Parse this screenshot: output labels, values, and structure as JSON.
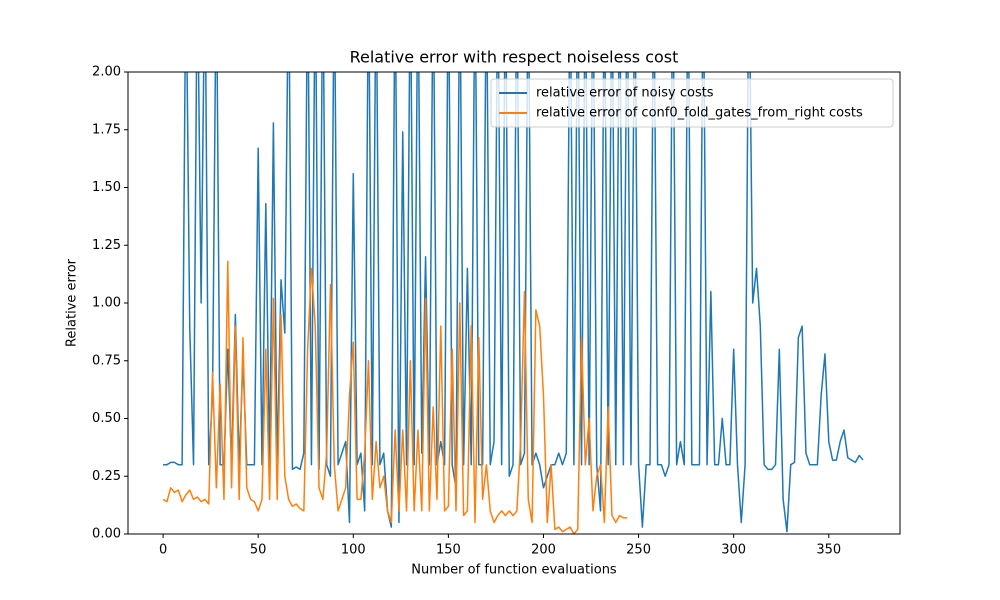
{
  "chart_data": {
    "type": "line",
    "title": "Relative error with respect noiseless cost",
    "x_label": "Number of function evaluations",
    "y_label": "Relative error",
    "xlim": [
      -18.45,
      387.45
    ],
    "ylim": [
      0,
      2
    ],
    "xticks": [
      0,
      50,
      100,
      150,
      200,
      250,
      300,
      350
    ],
    "yticks": [
      {
        "value": 0,
        "label": "0.00"
      },
      {
        "value": 0.25,
        "label": "0.25"
      },
      {
        "value": 0.5,
        "label": "0.50"
      },
      {
        "value": 0.75,
        "label": "0.75"
      },
      {
        "value": 1,
        "label": "1.00"
      },
      {
        "value": 1.25,
        "label": "1.25"
      },
      {
        "value": 1.5,
        "label": "1.50"
      },
      {
        "value": 1.75,
        "label": "1.75"
      },
      {
        "value": 2,
        "label": "2.00"
      }
    ],
    "legend": "upper right",
    "series": [
      {
        "name": "relative error of noisy costs",
        "color": "#1f77b4",
        "x": [
          0,
          2,
          4,
          6,
          8,
          10,
          12,
          14,
          16,
          18,
          20,
          22,
          24,
          26,
          28,
          30,
          32,
          34,
          36,
          38,
          40,
          42,
          44,
          46,
          48,
          50,
          52,
          54,
          56,
          58,
          60,
          62,
          64,
          66,
          68,
          70,
          72,
          74,
          76,
          78,
          80,
          82,
          84,
          86,
          88,
          90,
          92,
          94,
          96,
          98,
          100,
          102,
          104,
          106,
          108,
          110,
          112,
          114,
          116,
          118,
          120,
          122,
          124,
          126,
          128,
          130,
          132,
          134,
          136,
          138,
          140,
          142,
          144,
          146,
          148,
          150,
          152,
          154,
          156,
          158,
          160,
          162,
          164,
          166,
          168,
          170,
          172,
          174,
          176,
          178,
          180,
          182,
          184,
          186,
          188,
          190,
          192,
          194,
          196,
          198,
          200,
          202,
          204,
          206,
          208,
          210,
          212,
          214,
          216,
          218,
          220,
          222,
          224,
          226,
          228,
          230,
          232,
          234,
          236,
          238,
          240,
          242,
          244,
          246,
          248,
          250,
          252,
          254,
          256,
          258,
          260,
          262,
          264,
          266,
          268,
          270,
          272,
          274,
          276,
          278,
          280,
          282,
          284,
          286,
          288,
          290,
          292,
          294,
          296,
          298,
          300,
          302,
          304,
          306,
          308,
          310,
          312,
          314,
          316,
          318,
          320,
          322,
          324,
          326,
          328,
          330,
          332,
          334,
          336,
          338,
          340,
          342,
          344,
          346,
          348,
          350,
          352,
          354,
          356,
          358,
          360,
          362,
          364,
          366,
          368
        ],
        "values": [
          0.3,
          0.3,
          0.31,
          0.31,
          0.3,
          0.3,
          2.5,
          0.9,
          0.3,
          2.5,
          1.0,
          2.5,
          0.3,
          0.6,
          2.5,
          0.3,
          0.3,
          0.8,
          0.3,
          0.95,
          0.3,
          0.75,
          0.3,
          0.3,
          0.3,
          1.67,
          0.3,
          1.43,
          0.3,
          1.78,
          0.3,
          1.1,
          0.87,
          2.5,
          0.28,
          0.29,
          0.28,
          0.35,
          2.5,
          0.3,
          2.5,
          0.28,
          2.5,
          0.3,
          0.25,
          2.5,
          0.3,
          0.35,
          0.4,
          0.05,
          1.56,
          0.3,
          0.35,
          0.1,
          2.5,
          0.3,
          2.5,
          0.3,
          0.35,
          0.1,
          0.03,
          2.5,
          0.05,
          1.74,
          0.3,
          2.5,
          0.3,
          2.5,
          0.35,
          1.2,
          0.3,
          2.5,
          0.3,
          0.4,
          0.3,
          2.5,
          0.3,
          0.2,
          2.5,
          0.3,
          1.15,
          0.3,
          2.5,
          0.3,
          0.3,
          2.5,
          0.3,
          0.4,
          2.5,
          0.3,
          2.5,
          0.25,
          0.3,
          2.5,
          0.3,
          0.35,
          2.5,
          0.3,
          0.35,
          0.3,
          0.2,
          0.25,
          0.3,
          0.3,
          0.35,
          0.3,
          0.35,
          2.5,
          0.3,
          2.5,
          0.3,
          2.5,
          0.3,
          2.5,
          0.3,
          0.1,
          2.5,
          0.3,
          2.5,
          0.3,
          2.5,
          0.3,
          2.5,
          0.3,
          2.5,
          0.3,
          0.03,
          0.3,
          0.3,
          2.5,
          0.3,
          0.3,
          0.25,
          0.3,
          2.5,
          0.3,
          0.4,
          0.3,
          2.5,
          0.3,
          0.3,
          0.3,
          2.5,
          0.3,
          1.05,
          0.3,
          0.3,
          0.5,
          0.3,
          0.3,
          0.8,
          0.3,
          0.05,
          0.3,
          2.5,
          1.0,
          1.15,
          0.9,
          0.3,
          0.28,
          0.28,
          0.3,
          0.8,
          0.15,
          0.01,
          0.3,
          0.31,
          0.85,
          0.9,
          0.35,
          0.3,
          0.3,
          0.3,
          0.6,
          0.78,
          0.4,
          0.32,
          0.32,
          0.4,
          0.45,
          0.33,
          0.32,
          0.31,
          0.34,
          0.32
        ]
      },
      {
        "name": "relative error of conf0_fold_gates_from_right costs",
        "color": "#ff7f0e",
        "x": [
          0,
          2,
          4,
          6,
          8,
          10,
          12,
          14,
          16,
          18,
          20,
          22,
          24,
          26,
          28,
          30,
          32,
          34,
          36,
          38,
          40,
          42,
          44,
          46,
          48,
          50,
          52,
          54,
          56,
          58,
          60,
          62,
          64,
          66,
          68,
          70,
          72,
          74,
          76,
          78,
          80,
          82,
          84,
          86,
          88,
          90,
          92,
          94,
          96,
          98,
          100,
          102,
          104,
          106,
          108,
          110,
          112,
          114,
          116,
          118,
          120,
          122,
          124,
          126,
          128,
          130,
          132,
          134,
          136,
          138,
          140,
          142,
          144,
          146,
          148,
          150,
          152,
          154,
          156,
          158,
          160,
          162,
          164,
          166,
          168,
          170,
          172,
          174,
          176,
          178,
          180,
          182,
          184,
          186,
          188,
          190,
          192,
          194,
          196,
          198,
          200,
          202,
          204,
          206,
          208,
          210,
          212,
          214,
          216,
          218,
          220,
          222,
          224,
          226,
          228,
          230,
          232,
          234,
          236,
          238,
          240,
          242,
          244
        ],
        "values": [
          0.15,
          0.14,
          0.2,
          0.18,
          0.19,
          0.14,
          0.17,
          0.19,
          0.15,
          0.16,
          0.14,
          0.15,
          0.13,
          0.7,
          0.2,
          0.65,
          0.15,
          1.18,
          0.2,
          0.9,
          0.15,
          0.85,
          0.2,
          0.15,
          0.14,
          0.1,
          0.15,
          0.8,
          0.15,
          1.02,
          0.15,
          0.95,
          0.25,
          0.15,
          0.12,
          0.13,
          0.11,
          0.1,
          0.8,
          1.15,
          0.9,
          0.2,
          0.15,
          0.35,
          1.08,
          0.3,
          0.1,
          0.15,
          0.2,
          0.6,
          0.83,
          0.15,
          0.15,
          0.35,
          0.75,
          0.15,
          0.4,
          0.2,
          0.25,
          0.1,
          0.05,
          0.45,
          0.1,
          0.45,
          0.1,
          0.75,
          0.1,
          0.45,
          0.1,
          1.02,
          0.1,
          0.55,
          0.15,
          0.9,
          0.1,
          0.12,
          0.8,
          0.1,
          1.0,
          0.08,
          0.1,
          0.9,
          0.05,
          0.85,
          0.15,
          0.3,
          0.1,
          0.05,
          0.08,
          0.1,
          0.08,
          0.1,
          0.08,
          0.1,
          0.4,
          1.05,
          0.15,
          0.05,
          0.97,
          0.9,
          0.6,
          0.05,
          0.3,
          0.02,
          0.03,
          0.01,
          0.02,
          0.03,
          0.0,
          0.02,
          0.85,
          0.3,
          0.5,
          0.1,
          0.25,
          0.3,
          0.05,
          0.55,
          0.08,
          0.05,
          0.08,
          0.07,
          0.07
        ]
      }
    ]
  }
}
